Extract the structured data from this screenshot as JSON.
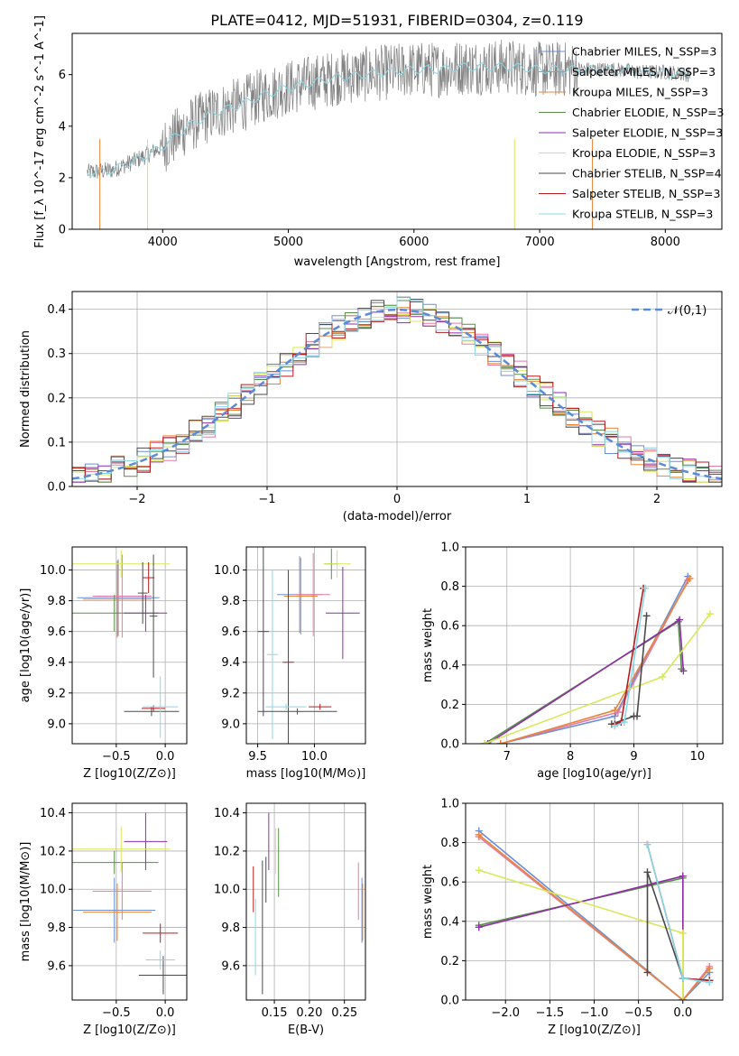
{
  "figure": {
    "title": "PLATE=0412, MJD=51931, FIBERID=0304, z=0.119"
  },
  "series_styles": [
    {
      "name": "Chabrier MILES",
      "color": "#6a8fd6"
    },
    {
      "name": "Salpeter MILES",
      "color": "#e57aa0"
    },
    {
      "name": "Kroupa MILES",
      "color": "#e8853a"
    },
    {
      "name": "Chabrier ELODIE",
      "color": "#5a8f4a"
    },
    {
      "name": "Salpeter ELODIE",
      "color": "#8e2fa8"
    },
    {
      "name": "Kroupa ELODIE",
      "color": "#d8e85a"
    },
    {
      "name": "Chabrier STELIB",
      "color": "#4a4a4a"
    },
    {
      "name": "Salpeter STELIB",
      "color": "#b81c1c"
    },
    {
      "name": "Kroupa STELIB",
      "color": "#88d8e8"
    }
  ],
  "chart_data": [
    {
      "id": "spectrum",
      "type": "line",
      "xlabel": "wavelength [Angstrom, rest frame]",
      "ylabel": "Flux [f_λ 10^-17 erg cm^-2 s^-1 A^-1]",
      "xlim": [
        3280,
        8450
      ],
      "ylim": [
        0,
        7.6
      ],
      "xticks": [
        4000,
        5000,
        6000,
        7000,
        8000
      ],
      "yticks": [
        0,
        2,
        4,
        6
      ],
      "grid": false,
      "legend_position": "right",
      "data_color": "#808080",
      "model_color": "#88d8e8",
      "data_spectrum": {
        "x": [
          3400,
          3600,
          3800,
          4000,
          4200,
          4400,
          4600,
          4800,
          5000,
          5200,
          5400,
          5600,
          5800,
          6000,
          6200,
          6400,
          6600,
          6800,
          7000,
          7200,
          7400,
          7600,
          7800,
          8000,
          8200
        ],
        "y": [
          2.2,
          2.3,
          2.7,
          3.2,
          4.0,
          4.5,
          4.8,
          5.2,
          5.5,
          5.7,
          5.9,
          6.0,
          6.1,
          6.2,
          6.2,
          6.3,
          6.3,
          6.3,
          6.2,
          6.2,
          6.2,
          6.2,
          6.1,
          6.1,
          6.0
        ]
      },
      "legend": [
        {
          "label": "Chabrier MILES, N_SSP=3",
          "color": "#6a8fd6"
        },
        {
          "label": "Salpeter MILES, N_SSP=3",
          "color": "#e57aa0"
        },
        {
          "label": "Kroupa MILES, N_SSP=3",
          "color": "#e8853a"
        },
        {
          "label": "Chabrier ELODIE, N_SSP=3",
          "color": "#5a8f4a"
        },
        {
          "label": "Salpeter ELODIE, N_SSP=3",
          "color": "#8e2fa8"
        },
        {
          "label": "Kroupa ELODIE, N_SSP=3",
          "color": "#d8e85a"
        },
        {
          "label": "Chabrier STELIB, N_SSP=4",
          "color": "#4a4a4a"
        },
        {
          "label": "Salpeter STELIB, N_SSP=3",
          "color": "#b81c1c"
        },
        {
          "label": "Kroupa STELIB, N_SSP=3",
          "color": "#88d8e8"
        }
      ]
    },
    {
      "id": "residuals",
      "type": "line",
      "xlabel": "(data-model)/error",
      "ylabel": "Normed distribution",
      "xlim": [
        -2.5,
        2.5
      ],
      "ylim": [
        0,
        0.44
      ],
      "xticks": [
        -2,
        -1,
        0,
        1,
        2
      ],
      "yticks": [
        0.0,
        0.1,
        0.2,
        0.3,
        0.4
      ],
      "grid": true,
      "legend_position": "top-right",
      "gaussian": {
        "label": "𝒩(0,1)",
        "color": "#5b8bd8"
      },
      "histogram_bin_width": 0.1
    },
    {
      "id": "age_vs_Z",
      "type": "scatter",
      "xlabel": "Z [log10(Z/Z⊙)]",
      "ylabel": "age [log10(age/yr)]",
      "xlim": [
        -0.95,
        0.22
      ],
      "ylim": [
        8.87,
        10.15
      ],
      "xticks": [
        -0.5,
        0.0
      ],
      "yticks": [
        9.0,
        9.2,
        9.4,
        9.6,
        9.8,
        10.0
      ],
      "grid": true,
      "points": [
        {
          "series": "Chabrier MILES",
          "x": -0.48,
          "xerr": 0.42,
          "y": 9.82,
          "yerr": 0.25
        },
        {
          "series": "Salpeter MILES",
          "x": -0.44,
          "xerr": 0.3,
          "y": 9.83,
          "yerr": 0.27
        },
        {
          "series": "Kroupa MILES",
          "x": -0.49,
          "xerr": 0.35,
          "y": 9.81,
          "yerr": 0.25
        },
        {
          "series": "Chabrier ELODIE",
          "x": -0.52,
          "xerr": 0.45,
          "y": 9.72,
          "yerr": 0.12
        },
        {
          "series": "Salpeter ELODIE",
          "x": -0.2,
          "xerr": 0.22,
          "y": 9.72,
          "yerr": 0.12
        },
        {
          "series": "Kroupa ELODIE",
          "x": -0.45,
          "xerr": 0.5,
          "y": 10.04,
          "yerr": 0.09
        },
        {
          "series": "Chabrier STELIB",
          "x": -0.14,
          "xerr": 0.28,
          "y": 9.08,
          "yerr": 0.03
        },
        {
          "series": "Salpeter STELIB",
          "x": -0.12,
          "xerr": 0.12,
          "y": 9.1,
          "yerr": 0.02
        },
        {
          "series": "Kroupa STELIB",
          "x": -0.05,
          "xerr": 0.18,
          "y": 9.11,
          "yerr": 0.2
        },
        {
          "series": "Chabrier STELIB",
          "x": -0.23,
          "xerr": 0.05,
          "y": 9.85,
          "yerr": 0.2
        },
        {
          "series": "Salpeter STELIB",
          "x": -0.17,
          "xerr": 0.06,
          "y": 9.95,
          "yerr": 0.1
        },
        {
          "series": "Chabrier STELIB",
          "x": -0.12,
          "xerr": 0.04,
          "y": 9.7,
          "yerr": 0.4
        }
      ]
    },
    {
      "id": "age_vs_mass",
      "type": "scatter",
      "xlabel": "mass [log10(M/M⊙)]",
      "ylabel": "",
      "xlim": [
        9.4,
        10.45
      ],
      "ylim": [
        8.87,
        10.15
      ],
      "xticks": [
        9.5,
        10.0
      ],
      "yticks": [
        9.0,
        9.2,
        9.4,
        9.6,
        9.8,
        10.0
      ],
      "grid": true,
      "points": [
        {
          "series": "Chabrier MILES",
          "x": 9.87,
          "xerr": 0.2,
          "y": 9.84,
          "yerr": 0.25
        },
        {
          "series": "Salpeter MILES",
          "x": 9.99,
          "xerr": 0.15,
          "y": 9.84,
          "yerr": 0.27
        },
        {
          "series": "Kroupa MILES",
          "x": 9.88,
          "xerr": 0.15,
          "y": 9.83,
          "yerr": 0.25
        },
        {
          "series": "Chabrier ELODIE",
          "x": 10.15,
          "xerr": 0.06,
          "y": 10.04,
          "yerr": 0.1
        },
        {
          "series": "Salpeter ELODIE",
          "x": 10.25,
          "xerr": 0.15,
          "y": 9.72,
          "yerr": 0.3
        },
        {
          "series": "Kroupa ELODIE",
          "x": 10.2,
          "xerr": 0.12,
          "y": 10.04,
          "yerr": 0.09
        },
        {
          "series": "Chabrier STELIB",
          "x": 9.55,
          "xerr": 0.05,
          "y": 9.6,
          "yerr": 0.55
        },
        {
          "series": "Salpeter STELIB",
          "x": 9.77,
          "xerr": 0.05,
          "y": 9.4,
          "yerr": 0.6
        },
        {
          "series": "Kroupa STELIB",
          "x": 9.63,
          "xerr": 0.05,
          "y": 9.45,
          "yerr": 0.55
        },
        {
          "series": "Chabrier STELIB",
          "x": 9.85,
          "xerr": 0.35,
          "y": 9.08,
          "yerr": 0.02
        },
        {
          "series": "Kroupa STELIB",
          "x": 9.75,
          "xerr": 0.18,
          "y": 9.11,
          "yerr": 0.02
        },
        {
          "series": "Salpeter STELIB",
          "x": 10.05,
          "xerr": 0.1,
          "y": 9.11,
          "yerr": 0.02
        }
      ]
    },
    {
      "id": "weight_vs_age",
      "type": "line",
      "xlabel": "age [log10(age/yr)]",
      "ylabel": "mass weight",
      "xlim": [
        6.35,
        10.4
      ],
      "ylim": [
        0,
        1.0
      ],
      "xticks": [
        7,
        8,
        9,
        10
      ],
      "yticks": [
        0.0,
        0.2,
        0.4,
        0.6,
        0.8,
        1.0
      ],
      "grid": true,
      "series": [
        {
          "name": "Chabrier MILES",
          "x": [
            6.9,
            8.7,
            9.85
          ],
          "y": [
            0.0,
            0.14,
            0.85
          ]
        },
        {
          "name": "Salpeter MILES",
          "x": [
            6.9,
            8.75,
            9.85
          ],
          "y": [
            0.0,
            0.16,
            0.83
          ]
        },
        {
          "name": "Kroupa MILES",
          "x": [
            6.9,
            8.7,
            9.88
          ],
          "y": [
            0.0,
            0.17,
            0.84
          ]
        },
        {
          "name": "Chabrier ELODIE",
          "x": [
            6.65,
            9.7,
            9.75
          ],
          "y": [
            0.0,
            0.62,
            0.38
          ]
        },
        {
          "name": "Salpeter ELODIE",
          "x": [
            6.7,
            9.72,
            9.78
          ],
          "y": [
            0.0,
            0.63,
            0.37
          ]
        },
        {
          "name": "Kroupa ELODIE",
          "x": [
            6.65,
            9.45,
            10.2
          ],
          "y": [
            0.0,
            0.34,
            0.66
          ]
        },
        {
          "name": "Chabrier STELIB",
          "x": [
            8.65,
            9.0,
            9.05,
            9.2
          ],
          "y": [
            0.1,
            0.14,
            0.14,
            0.65
          ]
        },
        {
          "name": "Salpeter STELIB",
          "x": [
            8.7,
            8.8,
            9.15
          ],
          "y": [
            0.1,
            0.11,
            0.79
          ]
        },
        {
          "name": "Kroupa STELIB",
          "x": [
            8.7,
            8.85,
            9.18
          ],
          "y": [
            0.09,
            0.11,
            0.79
          ]
        }
      ]
    },
    {
      "id": "mass_vs_Z",
      "type": "scatter",
      "xlabel": "Z [log10(Z/Z⊙)]",
      "ylabel": "mass [log10(M/M⊙)]",
      "xlim": [
        -0.95,
        0.22
      ],
      "ylim": [
        9.42,
        10.45
      ],
      "xticks": [
        -0.5,
        0.0
      ],
      "yticks": [
        9.6,
        9.8,
        10.0,
        10.2,
        10.4
      ],
      "grid": true,
      "points": [
        {
          "series": "Chabrier MILES",
          "x": -0.52,
          "xerr": 0.42,
          "y": 9.89,
          "yerr": 0.17
        },
        {
          "series": "Salpeter MILES",
          "x": -0.44,
          "xerr": 0.3,
          "y": 9.99,
          "yerr": 0.15
        },
        {
          "series": "Kroupa MILES",
          "x": -0.49,
          "xerr": 0.35,
          "y": 9.88,
          "yerr": 0.15
        },
        {
          "series": "Chabrier ELODIE",
          "x": -0.52,
          "xerr": 0.45,
          "y": 10.14,
          "yerr": 0.06
        },
        {
          "series": "Salpeter ELODIE",
          "x": -0.2,
          "xerr": 0.22,
          "y": 10.25,
          "yerr": 0.15
        },
        {
          "series": "Kroupa ELODIE",
          "x": -0.45,
          "xerr": 0.5,
          "y": 10.21,
          "yerr": 0.12
        },
        {
          "series": "Chabrier STELIB",
          "x": -0.02,
          "xerr": 0.25,
          "y": 9.55,
          "yerr": 0.1
        },
        {
          "series": "Salpeter STELIB",
          "x": -0.05,
          "xerr": 0.18,
          "y": 9.77,
          "yerr": 0.05
        },
        {
          "series": "Kroupa STELIB",
          "x": -0.05,
          "xerr": 0.15,
          "y": 9.63,
          "yerr": 0.05
        }
      ]
    },
    {
      "id": "mass_vs_EBV",
      "type": "scatter",
      "xlabel": "E(B-V)",
      "ylabel": "",
      "xlim": [
        0.11,
        0.28
      ],
      "ylim": [
        9.42,
        10.45
      ],
      "xticks": [
        0.15,
        0.2,
        0.25
      ],
      "yticks": [
        9.6,
        9.8,
        10.0,
        10.2,
        10.4
      ],
      "grid": true,
      "points": [
        {
          "series": "Chabrier MILES",
          "x": 0.275,
          "xerr": 0.0,
          "y": 9.89,
          "yerr": 0.17
        },
        {
          "series": "Salpeter MILES",
          "x": 0.27,
          "xerr": 0.0,
          "y": 9.99,
          "yerr": 0.15
        },
        {
          "series": "Kroupa MILES",
          "x": 0.276,
          "xerr": 0.0,
          "y": 9.88,
          "yerr": 0.15
        },
        {
          "series": "Chabrier ELODIE",
          "x": 0.156,
          "xerr": 0.0,
          "y": 10.14,
          "yerr": 0.18
        },
        {
          "series": "Salpeter ELODIE",
          "x": 0.142,
          "xerr": 0.0,
          "y": 10.25,
          "yerr": 0.15
        },
        {
          "series": "Kroupa ELODIE",
          "x": 0.152,
          "xerr": 0.0,
          "y": 10.2,
          "yerr": 0.12
        },
        {
          "series": "Chabrier STELIB",
          "x": 0.133,
          "xerr": 0.0,
          "y": 9.8,
          "yerr": 0.35
        },
        {
          "series": "Salpeter STELIB",
          "x": 0.12,
          "xerr": 0.0,
          "y": 10.0,
          "yerr": 0.12
        },
        {
          "series": "Kroupa STELIB",
          "x": 0.123,
          "xerr": 0.0,
          "y": 9.75,
          "yerr": 0.2
        },
        {
          "series": "Chabrier STELIB",
          "x": 0.138,
          "xerr": 0.0,
          "y": 10.05,
          "yerr": 0.12
        }
      ]
    },
    {
      "id": "weight_vs_Z",
      "type": "line",
      "xlabel": "Z [log10(Z/Z⊙)]",
      "ylabel": "mass weight",
      "xlim": [
        -2.45,
        0.45
      ],
      "ylim": [
        0,
        1.0
      ],
      "xticks": [
        -2.0,
        -1.5,
        -1.0,
        -0.5,
        0.0
      ],
      "yticks": [
        0.0,
        0.2,
        0.4,
        0.6,
        0.8,
        1.0
      ],
      "grid": true,
      "series": [
        {
          "name": "Chabrier MILES",
          "x": [
            -2.3,
            0.0,
            0.3
          ],
          "y": [
            0.86,
            0.0,
            0.14
          ]
        },
        {
          "name": "Salpeter MILES",
          "x": [
            -2.3,
            0.0,
            0.3
          ],
          "y": [
            0.83,
            0.0,
            0.17
          ]
        },
        {
          "name": "Kroupa MILES",
          "x": [
            -2.3,
            0.0,
            0.3
          ],
          "y": [
            0.84,
            0.0,
            0.16
          ]
        },
        {
          "name": "Chabrier ELODIE",
          "x": [
            -2.3,
            0.0,
            0.0
          ],
          "y": [
            0.38,
            0.62,
            0.0
          ]
        },
        {
          "name": "Salpeter ELODIE",
          "x": [
            -2.3,
            0.0,
            0.0
          ],
          "y": [
            0.37,
            0.63,
            0.0
          ]
        },
        {
          "name": "Kroupa ELODIE",
          "x": [
            -2.3,
            0.0,
            0.0
          ],
          "y": [
            0.66,
            0.34,
            0.0
          ]
        },
        {
          "name": "Chabrier STELIB",
          "x": [
            -0.4,
            -0.4,
            0.0,
            0.3
          ],
          "y": [
            0.14,
            0.65,
            0.11,
            0.1
          ]
        },
        {
          "name": "Salpeter STELIB",
          "x": [
            -0.4,
            0.0,
            0.3
          ],
          "y": [
            0.79,
            0.11,
            0.1
          ]
        },
        {
          "name": "Kroupa STELIB",
          "x": [
            -0.4,
            0.0,
            0.3
          ],
          "y": [
            0.79,
            0.11,
            0.09
          ]
        }
      ]
    }
  ]
}
